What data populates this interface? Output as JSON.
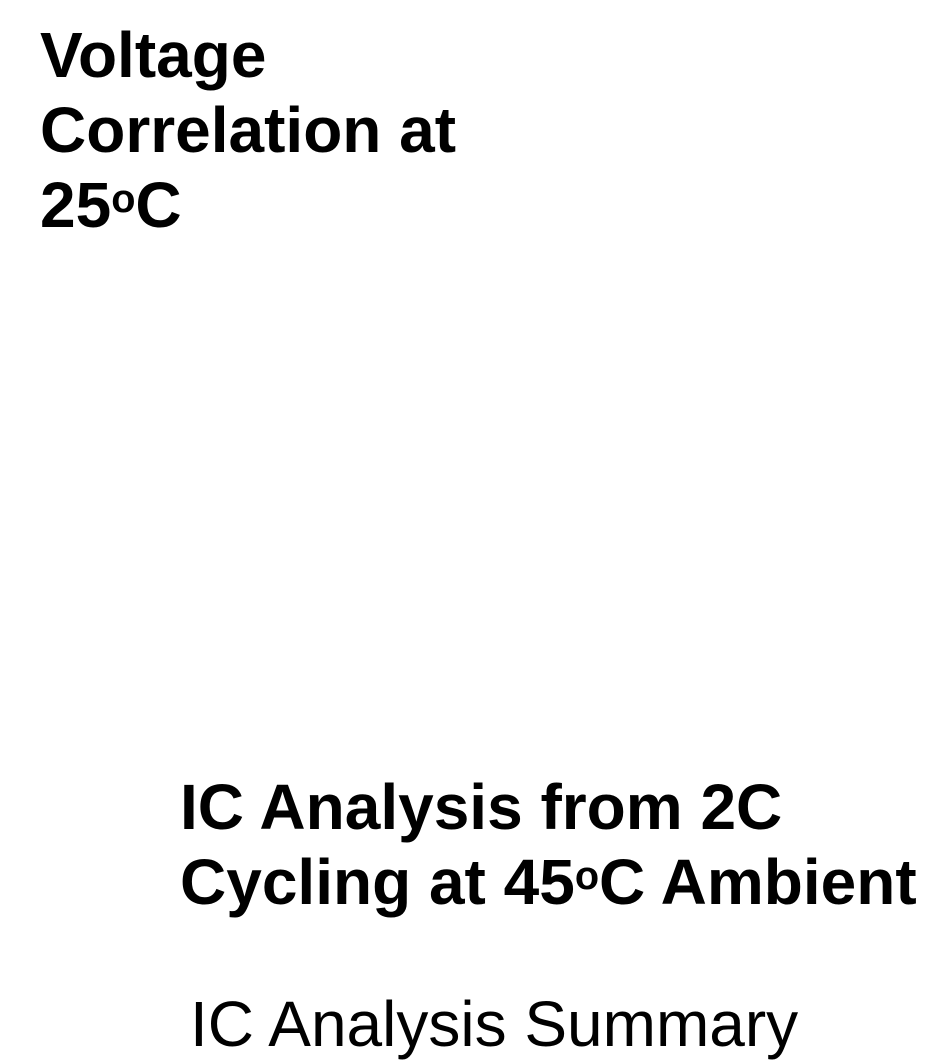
{
  "headings": [
    {
      "text": "Voltage Correlation at 25",
      "sup": "o",
      "after": "C"
    },
    {
      "text": "IC Analysis from 2C Cycling at 45",
      "sup": "o",
      "after": "C Ambient"
    }
  ],
  "subtitle": "IC Analysis Summary"
}
